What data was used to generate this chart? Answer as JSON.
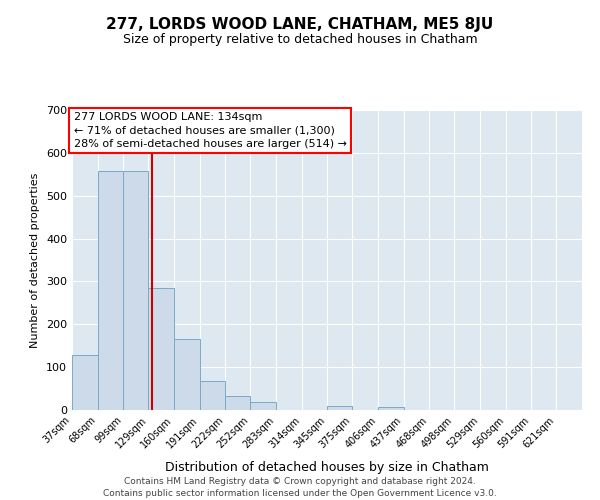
{
  "title": "277, LORDS WOOD LANE, CHATHAM, ME5 8JU",
  "subtitle": "Size of property relative to detached houses in Chatham",
  "xlabel": "Distribution of detached houses by size in Chatham",
  "ylabel": "Number of detached properties",
  "bar_color": "#ccdaea",
  "bar_edge_color": "#7aaac8",
  "background_color": "#dde8f0",
  "vline_x": 134,
  "vline_color": "#cc0000",
  "annotation_title": "277 LORDS WOOD LANE: 134sqm",
  "annotation_line2": "← 71% of detached houses are smaller (1,300)",
  "annotation_line3": "28% of semi-detached houses are larger (514) →",
  "footer1": "Contains HM Land Registry data © Crown copyright and database right 2024.",
  "footer2": "Contains public sector information licensed under the Open Government Licence v3.0.",
  "bin_edges": [
    37,
    68,
    99,
    129,
    160,
    191,
    222,
    252,
    283,
    314,
    345,
    375,
    406,
    437,
    468,
    498,
    529,
    560,
    591,
    621,
    652
  ],
  "bin_heights": [
    128,
    557,
    557,
    285,
    165,
    68,
    33,
    19,
    0,
    0,
    10,
    0,
    8,
    0,
    0,
    0,
    0,
    0,
    0,
    0
  ],
  "ylim": [
    0,
    700
  ],
  "yticks": [
    0,
    100,
    200,
    300,
    400,
    500,
    600,
    700
  ],
  "title_fontsize": 11,
  "subtitle_fontsize": 9,
  "annotation_fontsize": 8,
  "ylabel_fontsize": 8,
  "xlabel_fontsize": 9,
  "footer_fontsize": 6.5,
  "tick_fontsize": 8
}
